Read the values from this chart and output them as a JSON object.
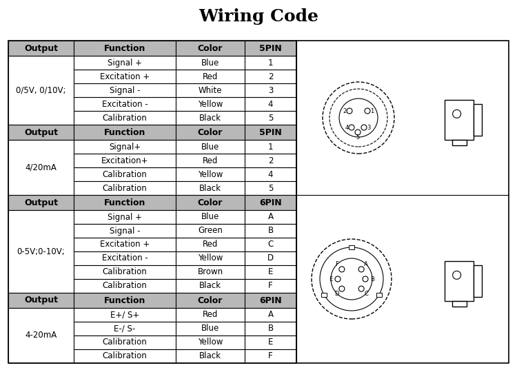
{
  "title": "Wiring Code",
  "title_fontsize": 18,
  "title_fontweight": "bold",
  "background_color": "#ffffff",
  "header_bg": "#b8b8b8",
  "text_color": "#000000",
  "section1_label": "0/5V, 0/10V;",
  "section2_label": "4/20mA",
  "section3_label": "0-5V;0-10V;",
  "section4_label": "4-20mA",
  "table1_header": [
    "Output",
    "Function",
    "Color",
    "5PIN"
  ],
  "table1_rows": [
    [
      "Signal +",
      "Blue",
      "1"
    ],
    [
      "Excitation +",
      "Red",
      "2"
    ],
    [
      "Signal -",
      "White",
      "3"
    ],
    [
      "Excitation -",
      "Yellow",
      "4"
    ],
    [
      "Calibration",
      "Black",
      "5"
    ]
  ],
  "table2_header": [
    "Output",
    "Function",
    "Color",
    "5PIN"
  ],
  "table2_rows": [
    [
      "Signal+",
      "Blue",
      "1"
    ],
    [
      "Excitation+",
      "Red",
      "2"
    ],
    [
      "Calibration",
      "Yellow",
      "4"
    ],
    [
      "Calibration",
      "Black",
      "5"
    ]
  ],
  "table3_header": [
    "Output",
    "Function",
    "Color",
    "6PIN"
  ],
  "table3_rows": [
    [
      "Signal +",
      "Blue",
      "A"
    ],
    [
      "Signal -",
      "Green",
      "B"
    ],
    [
      "Excitation +",
      "Red",
      "C"
    ],
    [
      "Excitation -",
      "Yellow",
      "D"
    ],
    [
      "Calibration",
      "Brown",
      "E"
    ],
    [
      "Calibration",
      "Black",
      "F"
    ]
  ],
  "table4_header": [
    "Output",
    "Function",
    "Color",
    "6PIN"
  ],
  "table4_rows": [
    [
      "E+/ S+",
      "Red",
      "A"
    ],
    [
      "E-/ S-",
      "Blue",
      "B"
    ],
    [
      "Calibration",
      "Yellow",
      "E"
    ],
    [
      "Calibration",
      "Black",
      "F"
    ]
  ],
  "pin5_positions": [
    [
      13,
      10,
      "1"
    ],
    [
      -13,
      10,
      "2"
    ],
    [
      -17,
      -2,
      "5"
    ],
    [
      -10,
      -14,
      "4"
    ],
    [
      8,
      -14,
      "3"
    ]
  ],
  "pin6_positions": [
    [
      13,
      10,
      "A"
    ],
    [
      17,
      -3,
      "B"
    ],
    [
      10,
      -16,
      "C"
    ],
    [
      -8,
      -16,
      "D"
    ],
    [
      -17,
      -3,
      "E"
    ],
    [
      -13,
      10,
      "F"
    ]
  ]
}
